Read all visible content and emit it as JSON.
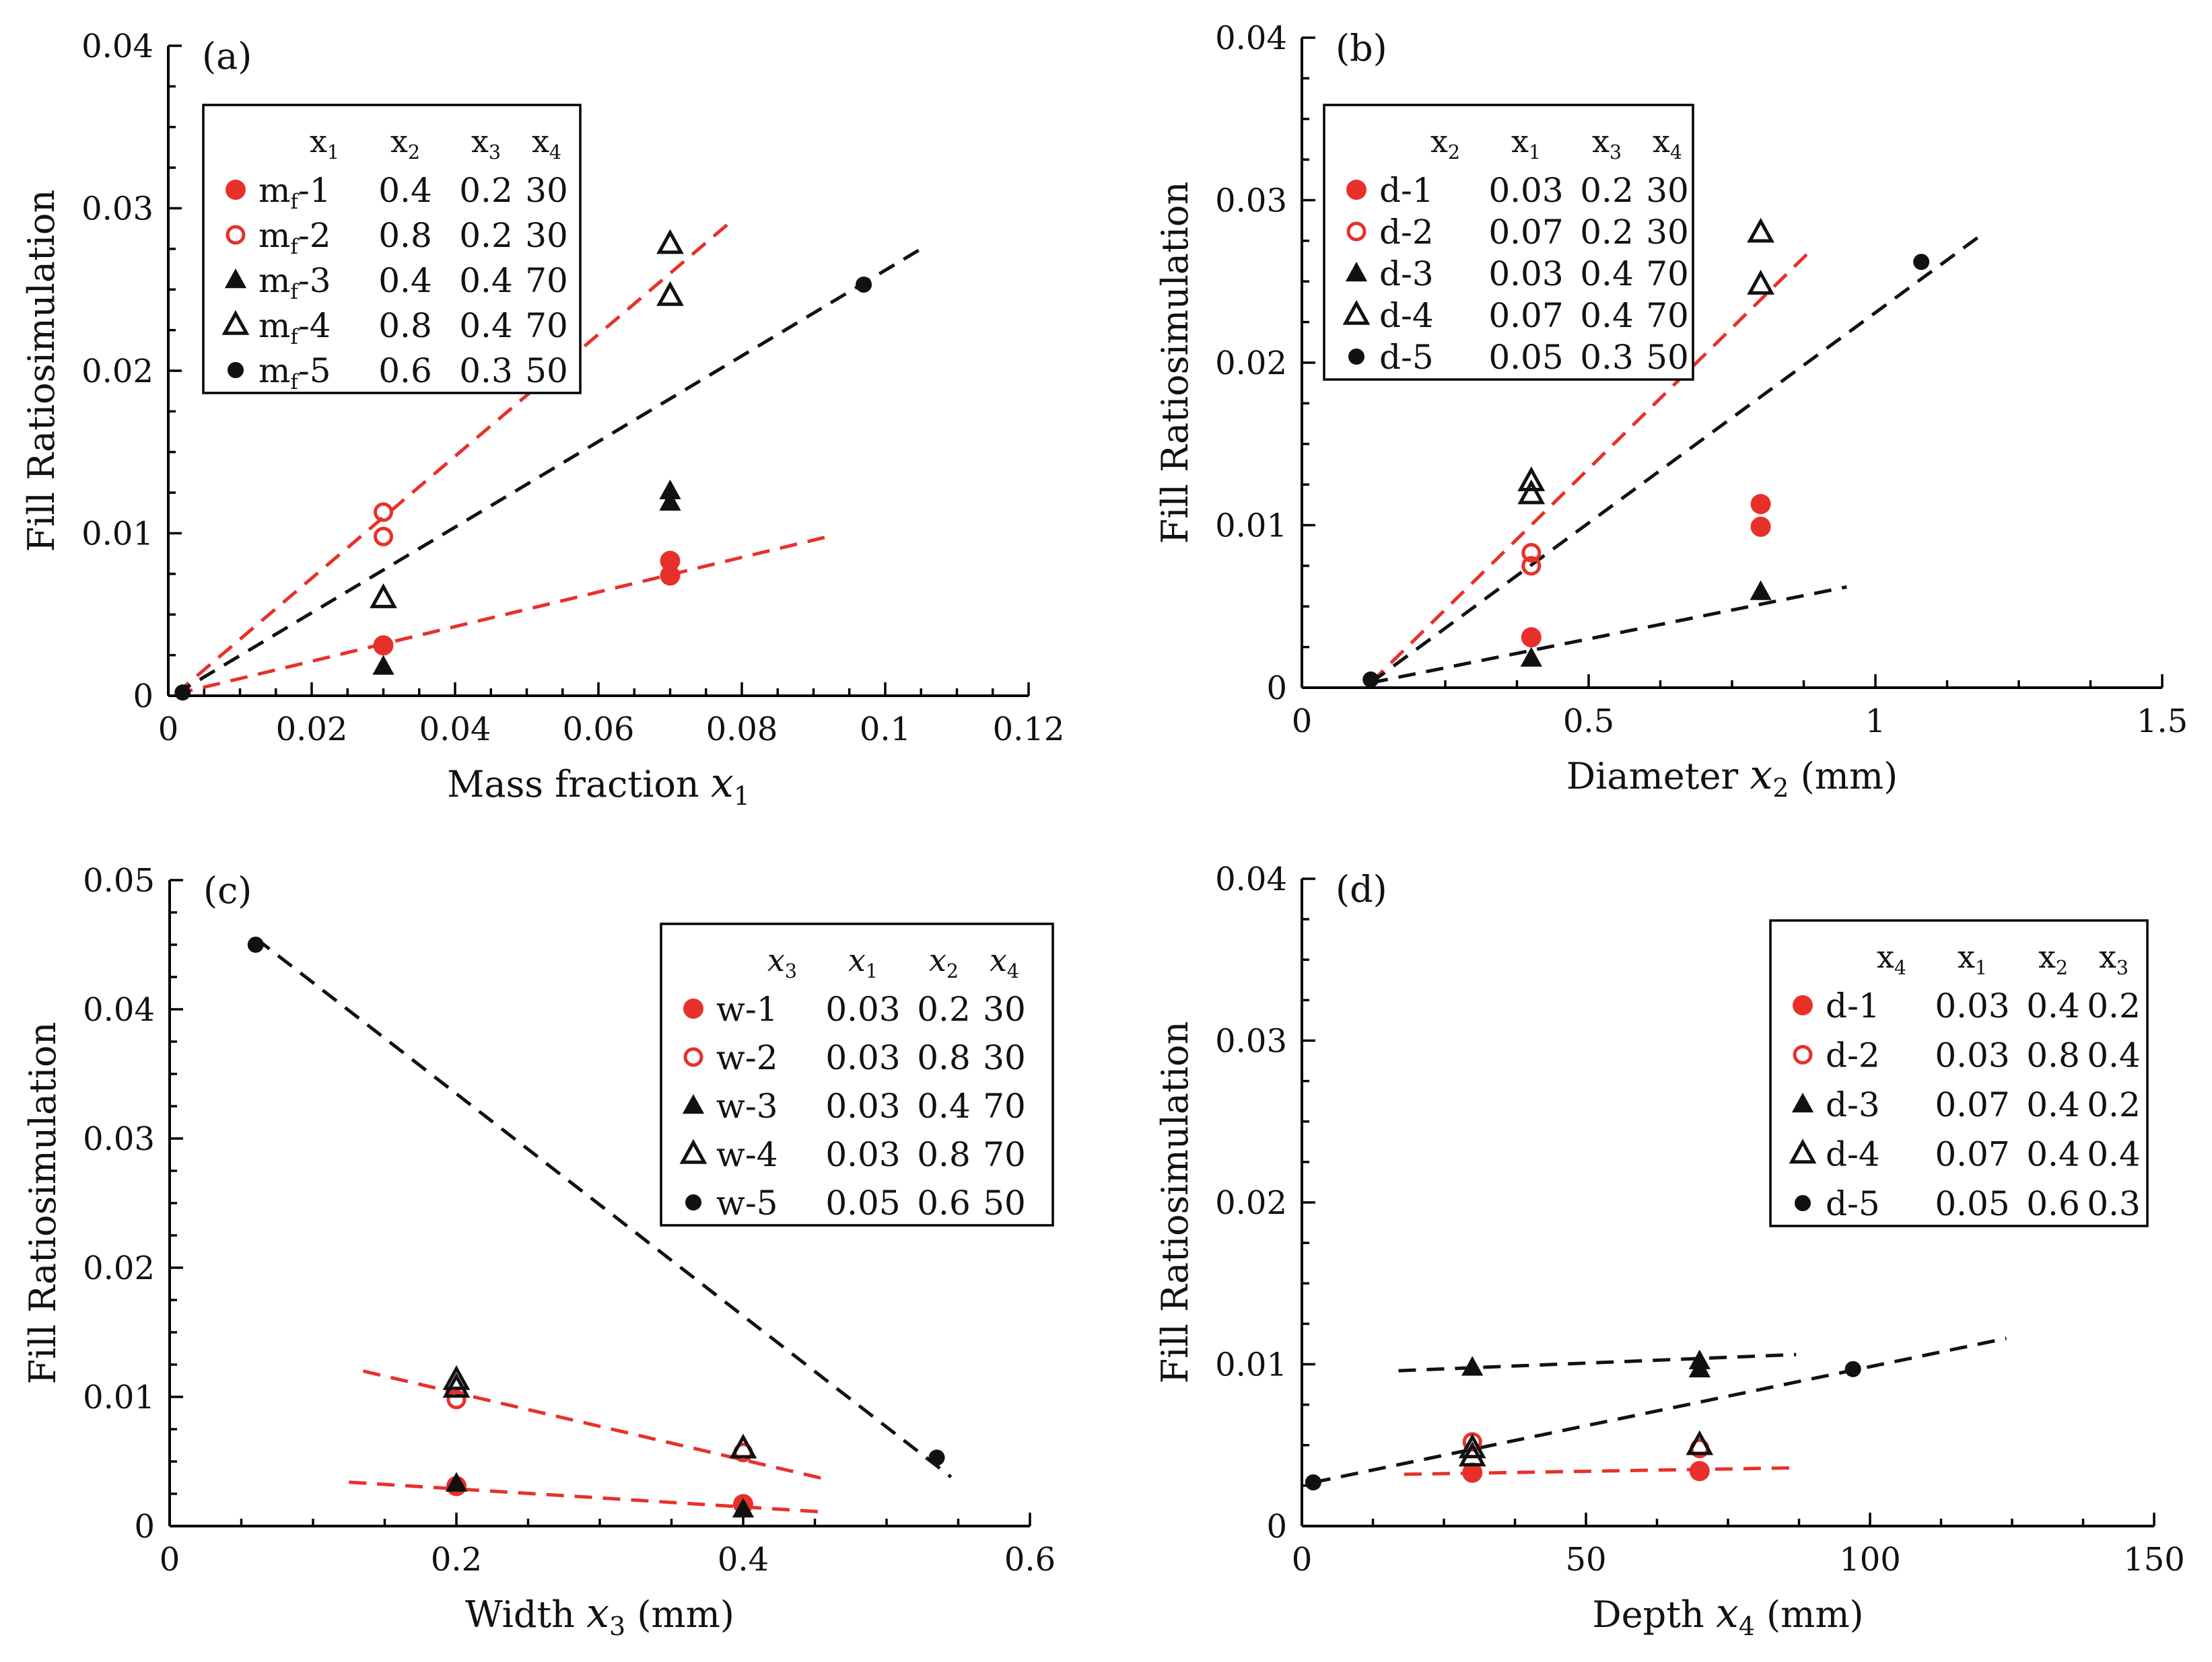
{
  "colors": {
    "red": "#e8302a",
    "black": "#111111"
  },
  "chart_data": [
    {
      "type": "scatter",
      "panel_label": "(a)",
      "xlabel": "Mass fraction",
      "xvar": "x",
      "xsub": "1",
      "xunit": "",
      "ylabel": "Fill Ratiosimulation",
      "xlim": [
        0,
        0.12
      ],
      "ylim": [
        0,
        0.04
      ],
      "xticks": [
        0,
        0.02,
        0.04,
        0.06,
        0.08,
        0.1,
        0.12
      ],
      "xtick_labels": [
        "0",
        "0.02",
        "0.04",
        "0.06",
        "0.08",
        "0.1",
        "0.12"
      ],
      "yticks": [
        0,
        0.01,
        0.02,
        0.03,
        0.04
      ],
      "ytick_labels": [
        "0",
        "0.01",
        "0.02",
        "0.03",
        "0.04"
      ],
      "legend": {
        "position": "top-left",
        "headers": [
          {
            "base": "x",
            "sub": "1"
          },
          {
            "base": "x",
            "sub": "2"
          },
          {
            "base": "x",
            "sub": "3"
          },
          {
            "base": "x",
            "sub": "4"
          }
        ],
        "rows": [
          {
            "marker": "filled-circle",
            "color": "#e8302a",
            "base": "m",
            "sub": "f",
            "suffix": "-1",
            "values": [
              "0.4",
              "0.2",
              "30"
            ]
          },
          {
            "marker": "open-circle",
            "color": "#e8302a",
            "base": "m",
            "sub": "f",
            "suffix": "-2",
            "values": [
              "0.8",
              "0.2",
              "30"
            ]
          },
          {
            "marker": "filled-triangle",
            "color": "#111111",
            "base": "m",
            "sub": "f",
            "suffix": "-3",
            "values": [
              "0.4",
              "0.4",
              "70"
            ]
          },
          {
            "marker": "open-triangle",
            "color": "#111111",
            "base": "m",
            "sub": "f",
            "suffix": "-4",
            "values": [
              "0.8",
              "0.4",
              "70"
            ]
          },
          {
            "marker": "small-filled-circle",
            "color": "#111111",
            "base": "m",
            "sub": "f",
            "suffix": "-5",
            "values": [
              "0.6",
              "0.3",
              "50"
            ]
          }
        ]
      },
      "series": [
        {
          "name": "mf-1",
          "marker": "filled-circle",
          "color": "#e8302a",
          "points": [
            [
              0.03,
              0.0031
            ],
            [
              0.07,
              0.0083
            ],
            [
              0.07,
              0.0074
            ]
          ]
        },
        {
          "name": "mf-2",
          "marker": "open-circle",
          "color": "#e8302a",
          "points": [
            [
              0.03,
              0.0113
            ],
            [
              0.03,
              0.0098
            ]
          ]
        },
        {
          "name": "mf-3",
          "marker": "filled-triangle",
          "color": "#111111",
          "points": [
            [
              0.03,
              0.0018
            ],
            [
              0.07,
              0.0126
            ],
            [
              0.07,
              0.0119
            ]
          ]
        },
        {
          "name": "mf-4",
          "marker": "open-triangle",
          "color": "#111111",
          "points": [
            [
              0.03,
              0.006
            ],
            [
              0.07,
              0.0278
            ],
            [
              0.07,
              0.0246
            ]
          ]
        },
        {
          "name": "mf-5",
          "marker": "small-filled-circle",
          "color": "#111111",
          "points": [
            [
              0.002,
              0.0002
            ],
            [
              0.097,
              0.0253
            ]
          ]
        }
      ],
      "fits": [
        {
          "color": "#e8302a",
          "from": [
            0.001,
            0.0001
          ],
          "to": [
            0.078,
            0.029
          ]
        },
        {
          "color": "#e8302a",
          "from": [
            0.001,
            0.0001
          ],
          "to": [
            0.093,
            0.0099
          ]
        },
        {
          "color": "#111111",
          "from": [
            0.001,
            0.0001
          ],
          "to": [
            0.105,
            0.0275
          ]
        }
      ]
    },
    {
      "type": "scatter",
      "panel_label": "(b)",
      "xlabel": "Diameter",
      "xvar": "x",
      "xsub": "2",
      "xunit": "(mm)",
      "ylabel": "Fill Ratiosimulation",
      "xlim": [
        0,
        1.5
      ],
      "ylim": [
        0,
        0.04
      ],
      "xticks": [
        0,
        0.5,
        1,
        1.5
      ],
      "xtick_labels": [
        "0",
        "0.5",
        "1",
        "1.5"
      ],
      "yticks": [
        0,
        0.01,
        0.02,
        0.03,
        0.04
      ],
      "ytick_labels": [
        "0",
        "0.01",
        "0.02",
        "0.03",
        "0.04"
      ],
      "legend": {
        "position": "top-left",
        "headers": [
          {
            "base": "x",
            "sub": "2"
          },
          {
            "base": "x",
            "sub": "1"
          },
          {
            "base": "x",
            "sub": "3"
          },
          {
            "base": "x",
            "sub": "4"
          }
        ],
        "rows": [
          {
            "marker": "filled-circle",
            "color": "#e8302a",
            "base": "d",
            "sub": "",
            "suffix": "-1",
            "values": [
              "0.03",
              "0.2",
              "30"
            ]
          },
          {
            "marker": "open-circle",
            "color": "#e8302a",
            "base": "d",
            "sub": "",
            "suffix": "-2",
            "values": [
              "0.07",
              "0.2",
              "30"
            ]
          },
          {
            "marker": "filled-triangle",
            "color": "#111111",
            "base": "d",
            "sub": "",
            "suffix": "-3",
            "values": [
              "0.03",
              "0.4",
              "70"
            ]
          },
          {
            "marker": "open-triangle",
            "color": "#111111",
            "base": "d",
            "sub": "",
            "suffix": "-4",
            "values": [
              "0.07",
              "0.4",
              "70"
            ]
          },
          {
            "marker": "small-filled-circle",
            "color": "#111111",
            "base": "d",
            "sub": "",
            "suffix": "-5",
            "values": [
              "0.05",
              "0.3",
              "50"
            ]
          }
        ]
      },
      "series": [
        {
          "name": "d-1",
          "marker": "filled-circle",
          "color": "#e8302a",
          "points": [
            [
              0.4,
              0.0031
            ],
            [
              0.8,
              0.0113
            ],
            [
              0.8,
              0.0099
            ]
          ]
        },
        {
          "name": "d-2",
          "marker": "open-circle",
          "color": "#e8302a",
          "points": [
            [
              0.4,
              0.0083
            ],
            [
              0.4,
              0.0075
            ]
          ]
        },
        {
          "name": "d-3",
          "marker": "filled-triangle",
          "color": "#111111",
          "points": [
            [
              0.4,
              0.0018
            ],
            [
              0.8,
              0.0059
            ]
          ]
        },
        {
          "name": "d-4",
          "marker": "open-triangle",
          "color": "#111111",
          "points": [
            [
              0.4,
              0.0127
            ],
            [
              0.4,
              0.0119
            ],
            [
              0.8,
              0.028
            ],
            [
              0.8,
              0.0248
            ]
          ]
        },
        {
          "name": "d-5",
          "marker": "small-filled-circle",
          "color": "#111111",
          "points": [
            [
              0.12,
              0.0005
            ],
            [
              1.08,
              0.0262
            ]
          ]
        }
      ],
      "fits": [
        {
          "color": "#e8302a",
          "from": [
            0.12,
            0.0003
          ],
          "to": [
            0.89,
            0.027
          ]
        },
        {
          "color": "#111111",
          "from": [
            0.12,
            0.0003
          ],
          "to": [
            1.19,
            0.028
          ]
        },
        {
          "color": "#111111",
          "from": [
            0.12,
            0.0003
          ],
          "to": [
            0.95,
            0.0062
          ]
        }
      ]
    },
    {
      "type": "scatter",
      "panel_label": "(c)",
      "xlabel": "Width",
      "xvar": "x",
      "xsub": "3",
      "xunit": "(mm)",
      "ylabel": "Fill Ratiosimulation",
      "xlim": [
        0,
        0.6
      ],
      "ylim": [
        0,
        0.05
      ],
      "xticks": [
        0,
        0.2,
        0.4,
        0.6
      ],
      "xtick_labels": [
        "0",
        "0.2",
        "0.4",
        "0.6"
      ],
      "yticks": [
        0,
        0.01,
        0.02,
        0.03,
        0.04,
        0.05
      ],
      "ytick_labels": [
        "0",
        "0.01",
        "0.02",
        "0.03",
        "0.04",
        "0.05"
      ],
      "legend": {
        "position": "top-right",
        "headers": [
          {
            "base": "x",
            "sub": "3"
          },
          {
            "base": "x",
            "sub": "1"
          },
          {
            "base": "x",
            "sub": "2"
          },
          {
            "base": "x",
            "sub": "4"
          }
        ],
        "rows": [
          {
            "marker": "filled-circle",
            "color": "#e8302a",
            "base": "w",
            "sub": "",
            "suffix": "-1",
            "values": [
              "0.03",
              "0.2",
              "30"
            ]
          },
          {
            "marker": "open-circle",
            "color": "#e8302a",
            "base": "w",
            "sub": "",
            "suffix": "-2",
            "values": [
              "0.03",
              "0.8",
              "30"
            ]
          },
          {
            "marker": "filled-triangle",
            "color": "#111111",
            "base": "w",
            "sub": "",
            "suffix": "-3",
            "values": [
              "0.03",
              "0.4",
              "70"
            ]
          },
          {
            "marker": "open-triangle",
            "color": "#111111",
            "base": "w",
            "sub": "",
            "suffix": "-4",
            "values": [
              "0.03",
              "0.8",
              "70"
            ]
          },
          {
            "marker": "small-filled-circle",
            "color": "#111111",
            "base": "w",
            "sub": "",
            "suffix": "-5",
            "values": [
              "0.05",
              "0.6",
              "50"
            ]
          }
        ]
      },
      "series": [
        {
          "name": "w-1",
          "marker": "filled-circle",
          "color": "#e8302a",
          "points": [
            [
              0.2,
              0.0031
            ],
            [
              0.4,
              0.0017
            ]
          ]
        },
        {
          "name": "w-2",
          "marker": "open-circle",
          "color": "#e8302a",
          "points": [
            [
              0.2,
              0.0098
            ],
            [
              0.4,
              0.0057
            ]
          ]
        },
        {
          "name": "w-3",
          "marker": "filled-triangle",
          "color": "#111111",
          "points": [
            [
              0.2,
              0.0033
            ],
            [
              0.4,
              0.0013
            ]
          ]
        },
        {
          "name": "w-4",
          "marker": "open-triangle",
          "color": "#111111",
          "points": [
            [
              0.2,
              0.0113
            ],
            [
              0.2,
              0.0107
            ],
            [
              0.4,
              0.006
            ]
          ]
        },
        {
          "name": "w-5",
          "marker": "small-filled-circle",
          "color": "#111111",
          "points": [
            [
              0.06,
              0.045
            ],
            [
              0.535,
              0.0053
            ]
          ]
        }
      ],
      "fits": [
        {
          "color": "#111111",
          "from": [
            0.06,
            0.0455
          ],
          "to": [
            0.545,
            0.0038
          ]
        },
        {
          "color": "#e8302a",
          "from": [
            0.135,
            0.012
          ],
          "to": [
            0.455,
            0.0037
          ]
        },
        {
          "color": "#e8302a",
          "from": [
            0.125,
            0.0034
          ],
          "to": [
            0.455,
            0.0011
          ]
        }
      ]
    },
    {
      "type": "scatter",
      "panel_label": "(d)",
      "xlabel": "Depth",
      "xvar": "x",
      "xsub": "4",
      "xunit": "(mm)",
      "ylabel": "Fill Ratiosimulation",
      "xlim": [
        0,
        150
      ],
      "ylim": [
        0,
        0.04
      ],
      "xticks": [
        0,
        50,
        100,
        150
      ],
      "xtick_labels": [
        "0",
        "50",
        "100",
        "150"
      ],
      "yticks": [
        0,
        0.01,
        0.02,
        0.03,
        0.04
      ],
      "ytick_labels": [
        "0",
        "0.01",
        "0.02",
        "0.03",
        "0.04"
      ],
      "legend": {
        "position": "top-right",
        "headers": [
          {
            "base": "x",
            "sub": "4"
          },
          {
            "base": "x",
            "sub": "1"
          },
          {
            "base": "x",
            "sub": "2"
          },
          {
            "base": "x",
            "sub": "3"
          }
        ],
        "rows": [
          {
            "marker": "filled-circle",
            "color": "#e8302a",
            "base": "d",
            "sub": "",
            "suffix": "-1",
            "values": [
              "0.03",
              "0.4",
              "0.2"
            ]
          },
          {
            "marker": "open-circle",
            "color": "#e8302a",
            "base": "d",
            "sub": "",
            "suffix": "-2",
            "values": [
              "0.03",
              "0.8",
              "0.4"
            ]
          },
          {
            "marker": "filled-triangle",
            "color": "#111111",
            "base": "d",
            "sub": "",
            "suffix": "-3",
            "values": [
              "0.07",
              "0.4",
              "0.2"
            ]
          },
          {
            "marker": "open-triangle",
            "color": "#111111",
            "base": "d",
            "sub": "",
            "suffix": "-4",
            "values": [
              "0.07",
              "0.4",
              "0.4"
            ]
          },
          {
            "marker": "small-filled-circle",
            "color": "#111111",
            "base": "d",
            "sub": "",
            "suffix": "-5",
            "values": [
              "0.05",
              "0.6",
              "0.3"
            ]
          }
        ]
      },
      "series": [
        {
          "name": "d-1",
          "marker": "filled-circle",
          "color": "#e8302a",
          "points": [
            [
              30,
              0.0033
            ],
            [
              70,
              0.0034
            ]
          ]
        },
        {
          "name": "d-2",
          "marker": "open-circle",
          "color": "#e8302a",
          "points": [
            [
              30,
              0.0052
            ],
            [
              70,
              0.0048
            ]
          ]
        },
        {
          "name": "d-3",
          "marker": "filled-triangle",
          "color": "#111111",
          "points": [
            [
              30,
              0.0098
            ],
            [
              70,
              0.0102
            ],
            [
              70,
              0.0097
            ]
          ]
        },
        {
          "name": "d-4",
          "marker": "open-triangle",
          "color": "#111111",
          "points": [
            [
              30,
              0.0048
            ],
            [
              30,
              0.0043
            ],
            [
              70,
              0.005
            ]
          ]
        },
        {
          "name": "d-5",
          "marker": "small-filled-circle",
          "color": "#111111",
          "points": [
            [
              2,
              0.0027
            ],
            [
              97,
              0.0097
            ]
          ]
        }
      ],
      "fits": [
        {
          "color": "#111111",
          "from": [
            17,
            0.0096
          ],
          "to": [
            87,
            0.0106
          ]
        },
        {
          "color": "#111111",
          "from": [
            2,
            0.0027
          ],
          "to": [
            124,
            0.0116
          ]
        },
        {
          "color": "#e8302a",
          "from": [
            18,
            0.0032
          ],
          "to": [
            87,
            0.0036
          ]
        }
      ]
    }
  ]
}
